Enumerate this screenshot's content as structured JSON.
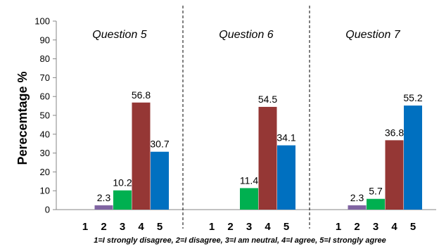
{
  "chart_data": {
    "type": "bar",
    "ylabel": "Perecemtage %",
    "ylim": [
      0,
      100
    ],
    "yticks": [
      0,
      10,
      20,
      30,
      40,
      50,
      60,
      70,
      80,
      90,
      100
    ],
    "categories": [
      "1",
      "2",
      "3",
      "4",
      "5"
    ],
    "category_colors": [
      "#4f81bd",
      "#8064a2",
      "#00b050",
      "#953735",
      "#0070c0"
    ],
    "grid": false,
    "footnote": "1=I strongly disagree, 2=I disagree, 3=I am neutral, 4=I agree, 5=I strongly agree",
    "panels": [
      {
        "title": "Question 5",
        "values": [
          0,
          2.3,
          10.2,
          56.8,
          30.7
        ],
        "labels": [
          "",
          "2.3",
          "10.2",
          "56.8",
          "30.7"
        ]
      },
      {
        "title": "Question 6",
        "values": [
          0,
          0,
          11.4,
          54.5,
          34.1
        ],
        "labels": [
          "",
          "",
          "11.4",
          "54.5",
          "34.1"
        ]
      },
      {
        "title": "Question 7",
        "values": [
          0,
          2.3,
          5.7,
          36.8,
          55.2
        ],
        "labels": [
          "",
          "2.3",
          "5.7",
          "36.8",
          "55.2"
        ]
      }
    ]
  }
}
